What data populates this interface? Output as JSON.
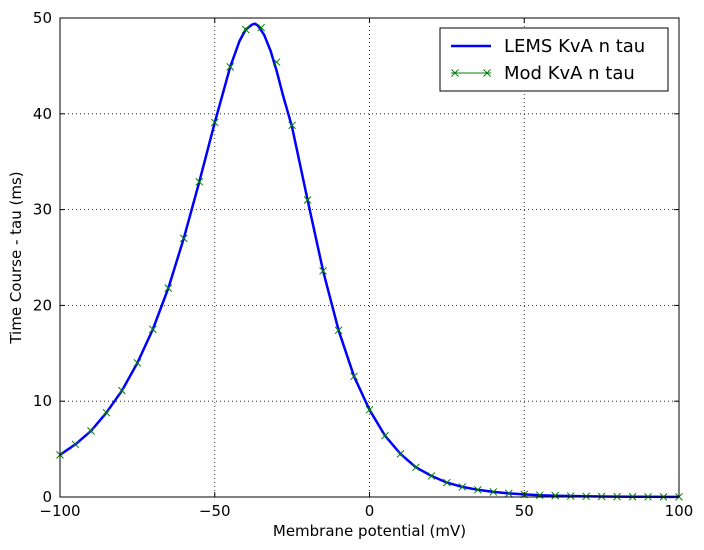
{
  "chart_data": {
    "type": "line",
    "title": "",
    "xlabel": "Membrane potential (mV)",
    "ylabel": "Time Course - tau (ms)",
    "xlim": [
      -100,
      100
    ],
    "ylim": [
      0,
      50
    ],
    "x_ticks": [
      -100,
      -50,
      0,
      50,
      100
    ],
    "x_tick_labels": [
      "−100",
      "−50",
      "0",
      "50",
      "100"
    ],
    "y_ticks": [
      0,
      10,
      20,
      30,
      40,
      50
    ],
    "y_tick_labels": [
      "0",
      "10",
      "20",
      "30",
      "40",
      "50"
    ],
    "grid": true,
    "legend_position": "top-right",
    "series": [
      {
        "name": "LEMS KvA n tau",
        "style": "line",
        "color": "#0000ff",
        "x": [
          -100,
          -95,
          -90,
          -85,
          -80,
          -75,
          -70,
          -65,
          -60,
          -55,
          -50,
          -45,
          -42,
          -40,
          -38,
          -37,
          -36,
          -34,
          -32,
          -30,
          -28,
          -25,
          -20,
          -15,
          -10,
          -5,
          0,
          5,
          10,
          15,
          20,
          25,
          30,
          35,
          40,
          45,
          50,
          55,
          60,
          65,
          70,
          75,
          80,
          85,
          90,
          95,
          100
        ],
        "y": [
          4.4,
          5.5,
          6.9,
          8.8,
          11.1,
          14.0,
          17.5,
          21.8,
          27.0,
          32.9,
          39.1,
          44.9,
          47.6,
          48.8,
          49.3,
          49.4,
          49.2,
          48.2,
          46.6,
          44.5,
          42.0,
          38.6,
          31.0,
          23.6,
          17.4,
          12.6,
          9.1,
          6.4,
          4.5,
          3.1,
          2.2,
          1.5,
          1.05,
          0.75,
          0.53,
          0.38,
          0.27,
          0.19,
          0.14,
          0.1,
          0.07,
          0.05,
          0.04,
          0.03,
          0.02,
          0.015,
          0.01
        ]
      },
      {
        "name": "Mod KvA n tau",
        "style": "marker-x",
        "color": "#008000",
        "x": [
          -100,
          -95,
          -90,
          -85,
          -80,
          -75,
          -70,
          -65,
          -60,
          -55,
          -50,
          -45,
          -40,
          -35,
          -30,
          -25,
          -20,
          -15,
          -10,
          -5,
          0,
          5,
          10,
          15,
          20,
          25,
          30,
          35,
          40,
          45,
          50,
          55,
          60,
          65,
          70,
          75,
          80,
          85,
          90,
          95,
          100
        ],
        "y": [
          4.4,
          5.5,
          6.9,
          8.8,
          11.1,
          14.0,
          17.5,
          21.8,
          27.0,
          32.9,
          39.1,
          44.9,
          48.8,
          49.0,
          45.4,
          38.8,
          31.0,
          23.6,
          17.4,
          12.6,
          9.1,
          6.4,
          4.5,
          3.1,
          2.2,
          1.5,
          1.05,
          0.75,
          0.53,
          0.38,
          0.27,
          0.19,
          0.14,
          0.1,
          0.07,
          0.05,
          0.04,
          0.03,
          0.02,
          0.015,
          0.01
        ]
      }
    ]
  }
}
